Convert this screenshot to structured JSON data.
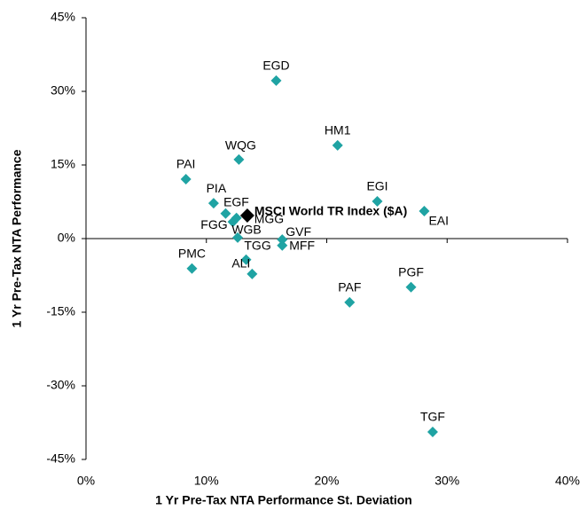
{
  "chart_data": {
    "type": "scatter",
    "xlabel": "1 Yr Pre-Tax NTA Performance St. Deviation",
    "ylabel": "1 Yr Pre-Tax NTA Performance",
    "labels": [
      "EGD",
      "HM1",
      "WQG",
      "PAI",
      "PIA",
      "EGF",
      "MGG",
      "FGG",
      "WGB",
      "GVF",
      "MFF",
      "TGG",
      "ALI",
      "PMC",
      "EGI",
      "EAI",
      "PGF",
      "PAF",
      "TGF"
    ],
    "x": [
      15.8,
      20.9,
      12.7,
      8.3,
      10.6,
      11.6,
      12.5,
      12.2,
      12.6,
      16.3,
      16.3,
      13.3,
      13.8,
      8.8,
      24.2,
      28.1,
      27.0,
      21.9,
      28.8
    ],
    "y": [
      32.2,
      19.0,
      16.1,
      12.1,
      7.2,
      5.1,
      4.2,
      3.4,
      0.2,
      -0.2,
      -1.4,
      -4.3,
      -7.2,
      -6.1,
      7.6,
      5.6,
      -9.9,
      -13.0,
      -39.4
    ],
    "color": "#1fa3a3",
    "highlight": {
      "label": "MSCI World TR Index ($A)",
      "x": 13.4,
      "y": 4.7,
      "color": "#000000"
    },
    "xlim": [
      0,
      40
    ],
    "xticks": [
      {
        "value": 0,
        "label": "0%"
      },
      {
        "value": 10,
        "label": "10%"
      },
      {
        "value": 20,
        "label": "20%"
      },
      {
        "value": 30,
        "label": "30%"
      },
      {
        "value": 40,
        "label": "40%"
      }
    ],
    "ylim": [
      -45,
      45
    ],
    "yticks": [
      {
        "value": -45,
        "label": "-45%"
      },
      {
        "value": -30,
        "label": "-30%"
      },
      {
        "value": -15,
        "label": "-15%"
      },
      {
        "value": 0,
        "label": "0%"
      },
      {
        "value": 15,
        "label": "15%"
      },
      {
        "value": 30,
        "label": "30%"
      },
      {
        "value": 45,
        "label": "45%"
      }
    ]
  }
}
